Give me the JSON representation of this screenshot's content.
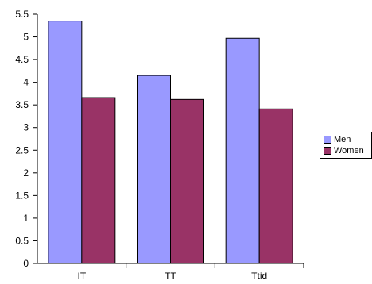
{
  "chart_data": {
    "type": "bar",
    "categories": [
      "IT",
      "TT",
      "Ttid"
    ],
    "series": [
      {
        "name": "Men",
        "values": [
          5.35,
          4.15,
          4.97
        ],
        "color": "#9999ff"
      },
      {
        "name": "Women",
        "values": [
          3.66,
          3.62,
          3.41
        ],
        "color": "#993366"
      }
    ],
    "ylim": [
      0,
      5.5
    ],
    "yticks": [
      "0",
      "0.5",
      "1",
      "1.5",
      "2",
      "2.5",
      "3",
      "3.5",
      "4",
      "4.5",
      "5",
      "5.5"
    ],
    "grid": false,
    "legend_position": "right"
  }
}
